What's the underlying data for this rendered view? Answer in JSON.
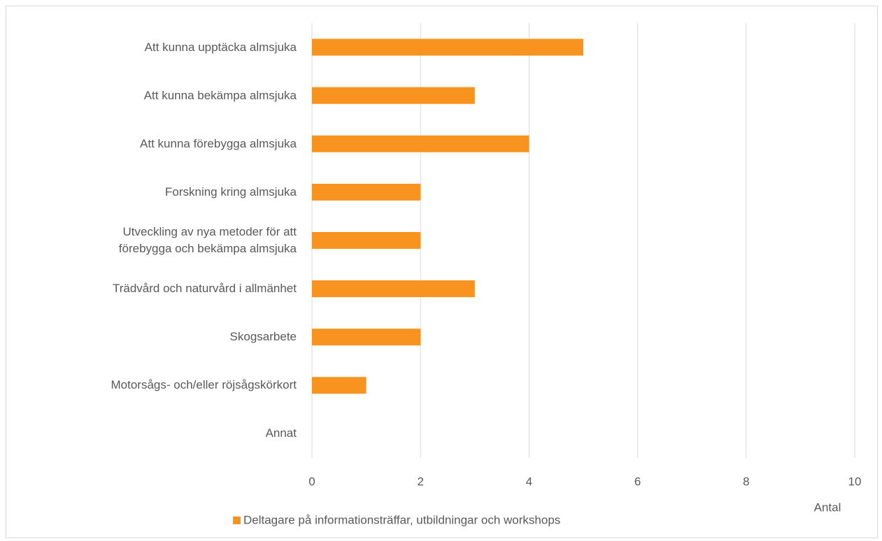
{
  "chart_data": {
    "type": "bar",
    "orientation": "horizontal",
    "categories": [
      "Att kunna upptäcka almsjuka",
      "Att kunna bekämpa almsjuka",
      "Att kunna förebygga almsjuka",
      "Forskning kring almsjuka",
      "Utveckling av nya metoder för att\nförebygga och bekämpa almsjuka",
      "Trädvård och naturvård i allmänhet",
      "Skogsarbete",
      "Motorsågs- och/eller röjsågskörkort",
      "Annat"
    ],
    "series": [
      {
        "name": "Deltagare på informationsträffar, utbildningar och workshops",
        "color": "#f7931e",
        "values": [
          5,
          3,
          4,
          2,
          2,
          3,
          2,
          1,
          0
        ]
      }
    ],
    "xlabel": "Antal",
    "xlim": [
      0,
      10
    ],
    "xticks": [
      0,
      2,
      4,
      6,
      8,
      10
    ],
    "grid": true,
    "legend": "bottom"
  }
}
